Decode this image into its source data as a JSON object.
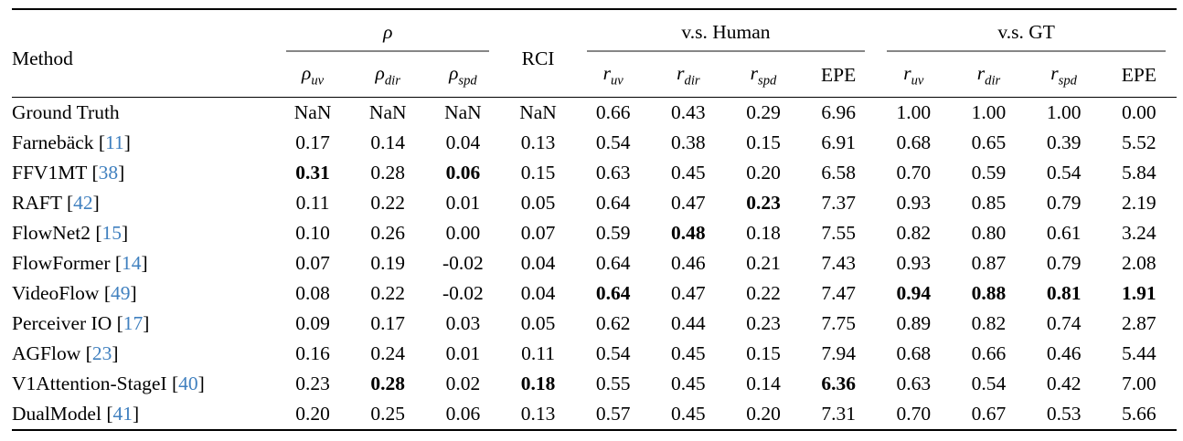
{
  "table": {
    "header": {
      "method_label": "Method",
      "groups": {
        "rho": {
          "label": "ρ"
        },
        "rci": {
          "label": "RCI"
        },
        "human": {
          "label": "v.s. Human"
        },
        "gt": {
          "label": "v.s. GT"
        }
      },
      "subheaders": [
        {
          "base": "ρ",
          "sub": "uv"
        },
        {
          "base": "ρ",
          "sub": "dir"
        },
        {
          "base": "ρ",
          "sub": "spd"
        },
        {
          "base": "r",
          "sub": "uv"
        },
        {
          "base": "r",
          "sub": "dir"
        },
        {
          "base": "r",
          "sub": "spd"
        },
        {
          "base": "EPE",
          "sub": ""
        },
        {
          "base": "r",
          "sub": "uv"
        },
        {
          "base": "r",
          "sub": "dir"
        },
        {
          "base": "r",
          "sub": "spd"
        },
        {
          "base": "EPE",
          "sub": ""
        }
      ]
    },
    "rows": [
      {
        "method": "Ground Truth",
        "cite": null,
        "values": [
          "NaN",
          "NaN",
          "NaN",
          "NaN",
          "0.66",
          "0.43",
          "0.29",
          "6.96",
          "1.00",
          "1.00",
          "1.00",
          "0.00"
        ],
        "bold": []
      },
      {
        "method": "Farnebäck",
        "cite": "11",
        "values": [
          "0.17",
          "0.14",
          "0.04",
          "0.13",
          "0.54",
          "0.38",
          "0.15",
          "6.91",
          "0.68",
          "0.65",
          "0.39",
          "5.52"
        ],
        "bold": []
      },
      {
        "method": "FFV1MT",
        "cite": "38",
        "values": [
          "0.31",
          "0.28",
          "0.06",
          "0.15",
          "0.63",
          "0.45",
          "0.20",
          "6.58",
          "0.70",
          "0.59",
          "0.54",
          "5.84"
        ],
        "bold": [
          0,
          2
        ]
      },
      {
        "method": "RAFT",
        "cite": "42",
        "values": [
          "0.11",
          "0.22",
          "0.01",
          "0.05",
          "0.64",
          "0.47",
          "0.23",
          "7.37",
          "0.93",
          "0.85",
          "0.79",
          "2.19"
        ],
        "bold": [
          6
        ]
      },
      {
        "method": "FlowNet2",
        "cite": "15",
        "values": [
          "0.10",
          "0.26",
          "0.00",
          "0.07",
          "0.59",
          "0.48",
          "0.18",
          "7.55",
          "0.82",
          "0.80",
          "0.61",
          "3.24"
        ],
        "bold": [
          5
        ]
      },
      {
        "method": "FlowFormer",
        "cite": "14",
        "values": [
          "0.07",
          "0.19",
          "-0.02",
          "0.04",
          "0.64",
          "0.46",
          "0.21",
          "7.43",
          "0.93",
          "0.87",
          "0.79",
          "2.08"
        ],
        "bold": []
      },
      {
        "method": "VideoFlow",
        "cite": "49",
        "values": [
          "0.08",
          "0.22",
          "-0.02",
          "0.04",
          "0.64",
          "0.47",
          "0.22",
          "7.47",
          "0.94",
          "0.88",
          "0.81",
          "1.91"
        ],
        "bold": [
          4,
          8,
          9,
          10,
          11
        ]
      },
      {
        "method": "Perceiver IO",
        "cite": "17",
        "values": [
          "0.09",
          "0.17",
          "0.03",
          "0.05",
          "0.62",
          "0.44",
          "0.23",
          "7.75",
          "0.89",
          "0.82",
          "0.74",
          "2.87"
        ],
        "bold": []
      },
      {
        "method": "AGFlow",
        "cite": "23",
        "values": [
          "0.16",
          "0.24",
          "0.01",
          "0.11",
          "0.54",
          "0.45",
          "0.15",
          "7.94",
          "0.68",
          "0.66",
          "0.46",
          "5.44"
        ],
        "bold": []
      },
      {
        "method": "V1Attention-StageI",
        "cite": "40",
        "values": [
          "0.23",
          "0.28",
          "0.02",
          "0.18",
          "0.55",
          "0.45",
          "0.14",
          "6.36",
          "0.63",
          "0.54",
          "0.42",
          "7.00"
        ],
        "bold": [
          1,
          3,
          7
        ]
      },
      {
        "method": "DualModel",
        "cite": "41",
        "values": [
          "0.20",
          "0.25",
          "0.06",
          "0.13",
          "0.57",
          "0.45",
          "0.20",
          "7.31",
          "0.70",
          "0.67",
          "0.53",
          "5.66"
        ],
        "bold": []
      }
    ]
  },
  "colors": {
    "citation_blue": "#4080bf",
    "rule_black": "#000000",
    "cmidrule_gray": "#868686",
    "text": "#000000"
  }
}
